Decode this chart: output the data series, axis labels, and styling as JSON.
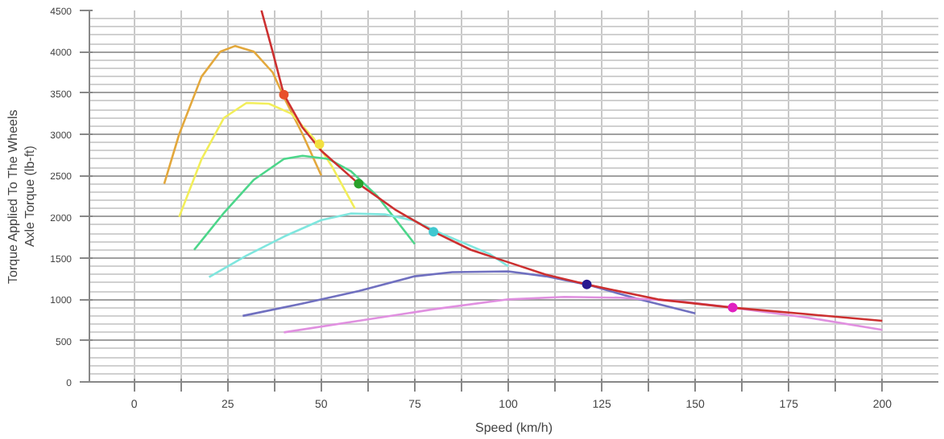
{
  "chart_data": {
    "type": "line",
    "xlabel": "Speed (km/h)",
    "ylabel": "Torque Applied To The Wheels\nAxle Torque (lb-ft)",
    "xlim": [
      -12,
      215
    ],
    "ylim": [
      0,
      4500
    ],
    "xticks": [
      0,
      {
        "value": 12.5,
        "label": null
      },
      25,
      {
        "value": 37.5,
        "label": null
      },
      50,
      {
        "value": 62.5,
        "label": null
      },
      75,
      {
        "value": 87.5,
        "label": null
      },
      100,
      {
        "value": 112.5,
        "label": null
      },
      125,
      {
        "value": 137.5,
        "label": null
      },
      150,
      {
        "value": 162.5,
        "label": null
      },
      175,
      {
        "value": 187.5,
        "label": null
      },
      200
    ],
    "yticks": [
      0,
      500,
      1000,
      1500,
      2000,
      2500,
      3000,
      3500,
      4000,
      4500
    ],
    "grid": true,
    "line_style": "solid",
    "marker": "none",
    "series": [
      {
        "color": "#e3a83c",
        "x": [
          8,
          12,
          18,
          23,
          27,
          32,
          37,
          40,
          45,
          50
        ],
        "values": [
          2400,
          3000,
          3700,
          4000,
          4070,
          4000,
          3750,
          3450,
          3000,
          2500
        ]
      },
      {
        "color": "#f2ee5a",
        "x": [
          12,
          18,
          24,
          30,
          36,
          42,
          48,
          53,
          59
        ],
        "values": [
          2000,
          2700,
          3200,
          3380,
          3370,
          3250,
          2950,
          2600,
          2100
        ]
      },
      {
        "color": "#4cd68a",
        "x": [
          16,
          24,
          32,
          40,
          45,
          52,
          58,
          65,
          75
        ],
        "values": [
          1600,
          2050,
          2450,
          2700,
          2740,
          2700,
          2550,
          2250,
          1670
        ]
      },
      {
        "color": "#7fe6de",
        "x": [
          20,
          30,
          40,
          50,
          58,
          67,
          75,
          82,
          95,
          100
        ],
        "values": [
          1270,
          1530,
          1760,
          1960,
          2040,
          2030,
          1950,
          1800,
          1550,
          1400
        ]
      },
      {
        "color": "#7070c0",
        "x": [
          29,
          45,
          60,
          75,
          85,
          100,
          110,
          121,
          135,
          150
        ],
        "values": [
          800,
          950,
          1100,
          1280,
          1330,
          1340,
          1280,
          1180,
          1000,
          830
        ]
      },
      {
        "color": "#e090e0",
        "x": [
          40,
          60,
          80,
          100,
          115,
          130,
          145,
          160,
          180,
          200
        ],
        "values": [
          600,
          740,
          880,
          1000,
          1030,
          1020,
          980,
          900,
          780,
          630
        ]
      },
      {
        "color": "#cc3030",
        "x": [
          34,
          37,
          40,
          45,
          50,
          60,
          70,
          80,
          90,
          100,
          110,
          121,
          140,
          160,
          180,
          200
        ],
        "values": [
          4500,
          4000,
          3480,
          3080,
          2800,
          2400,
          2080,
          1820,
          1600,
          1450,
          1300,
          1180,
          1000,
          900,
          820,
          740
        ]
      },
      {
        "type": "scatter",
        "marker": "circle",
        "x": [
          40,
          49.5,
          60,
          80,
          121,
          160
        ],
        "values": [
          3480,
          2880,
          2400,
          1820,
          1180,
          900
        ],
        "colors": [
          "#e8502a",
          "#f2e040",
          "#2aa02a",
          "#40c8d0",
          "#2a1890",
          "#e020c0"
        ]
      }
    ]
  }
}
